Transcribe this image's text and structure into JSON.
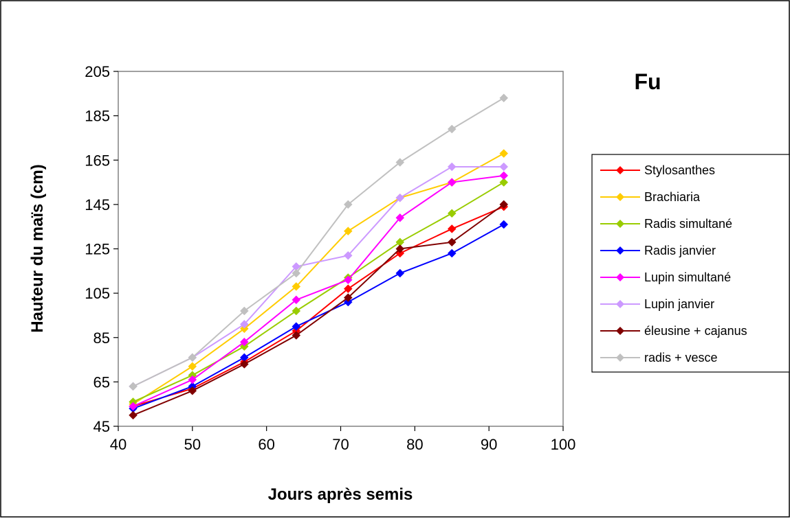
{
  "chart_data": {
    "type": "line",
    "title": "Fu",
    "xlabel": "Jours après semis",
    "ylabel": "Hauteur du maïs (cm)",
    "xlim": [
      40,
      100
    ],
    "ylim": [
      45,
      205
    ],
    "xticks": [
      40,
      50,
      60,
      70,
      80,
      90,
      100
    ],
    "yticks": [
      45,
      65,
      85,
      105,
      125,
      145,
      165,
      185,
      205
    ],
    "grid": false,
    "legend_position": "right",
    "x": [
      42,
      50,
      57,
      64,
      71,
      78,
      85,
      92
    ],
    "series": [
      {
        "name": "Stylosanthes",
        "color": "#ff0000",
        "values": [
          54,
          62,
          74,
          88,
          107,
          123,
          134,
          144
        ]
      },
      {
        "name": "Brachiaria",
        "color": "#ffcc00",
        "values": [
          55,
          72,
          89,
          108,
          133,
          148,
          155,
          168
        ]
      },
      {
        "name": "Radis simultané",
        "color": "#99cc00",
        "values": [
          56,
          68,
          81,
          97,
          112,
          128,
          141,
          155
        ]
      },
      {
        "name": "Radis janvier",
        "color": "#0000ff",
        "values": [
          53,
          63,
          76,
          90,
          101,
          114,
          123,
          136
        ]
      },
      {
        "name": "Lupin simultané",
        "color": "#ff00ff",
        "values": [
          54,
          66,
          83,
          102,
          111,
          139,
          155,
          158
        ]
      },
      {
        "name": "Lupin janvier",
        "color": "#cc99ff",
        "values": [
          63,
          76,
          91,
          117,
          122,
          148,
          162,
          162
        ]
      },
      {
        "name": "éleusine + cajanus",
        "color": "#800000",
        "values": [
          50,
          61,
          73,
          86,
          103,
          125,
          128,
          145
        ]
      },
      {
        "name": "radis + vesce",
        "color": "#c0c0c0",
        "values": [
          63,
          76,
          97,
          114,
          145,
          164,
          179,
          193
        ]
      }
    ]
  }
}
